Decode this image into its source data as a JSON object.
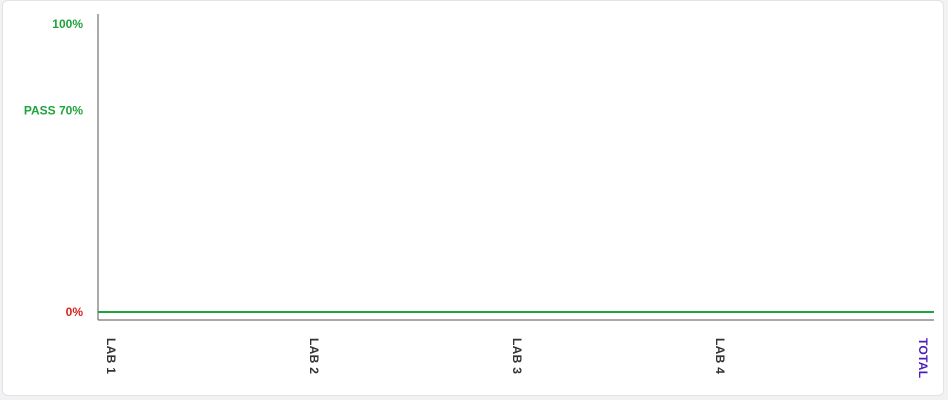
{
  "chart_data": {
    "type": "line",
    "categories": [
      "LAB 1",
      "LAB 2",
      "LAB 3",
      "LAB 4",
      "TOTAL"
    ],
    "series": [
      {
        "values": [
          0,
          0,
          0,
          0,
          0
        ],
        "color": "#1fa33c"
      }
    ],
    "ylim": [
      0,
      100
    ],
    "y_ticks": [
      {
        "value": 100,
        "label": "100%",
        "color": "#1fa33c"
      },
      {
        "value": 70,
        "label": "PASS 70%",
        "color": "#1fa33c"
      },
      {
        "value": 0,
        "label": "0%",
        "color": "#d9221c"
      }
    ],
    "category_colors": [
      "#333333",
      "#333333",
      "#333333",
      "#333333",
      "#4b1fb8"
    ],
    "grid": false
  }
}
